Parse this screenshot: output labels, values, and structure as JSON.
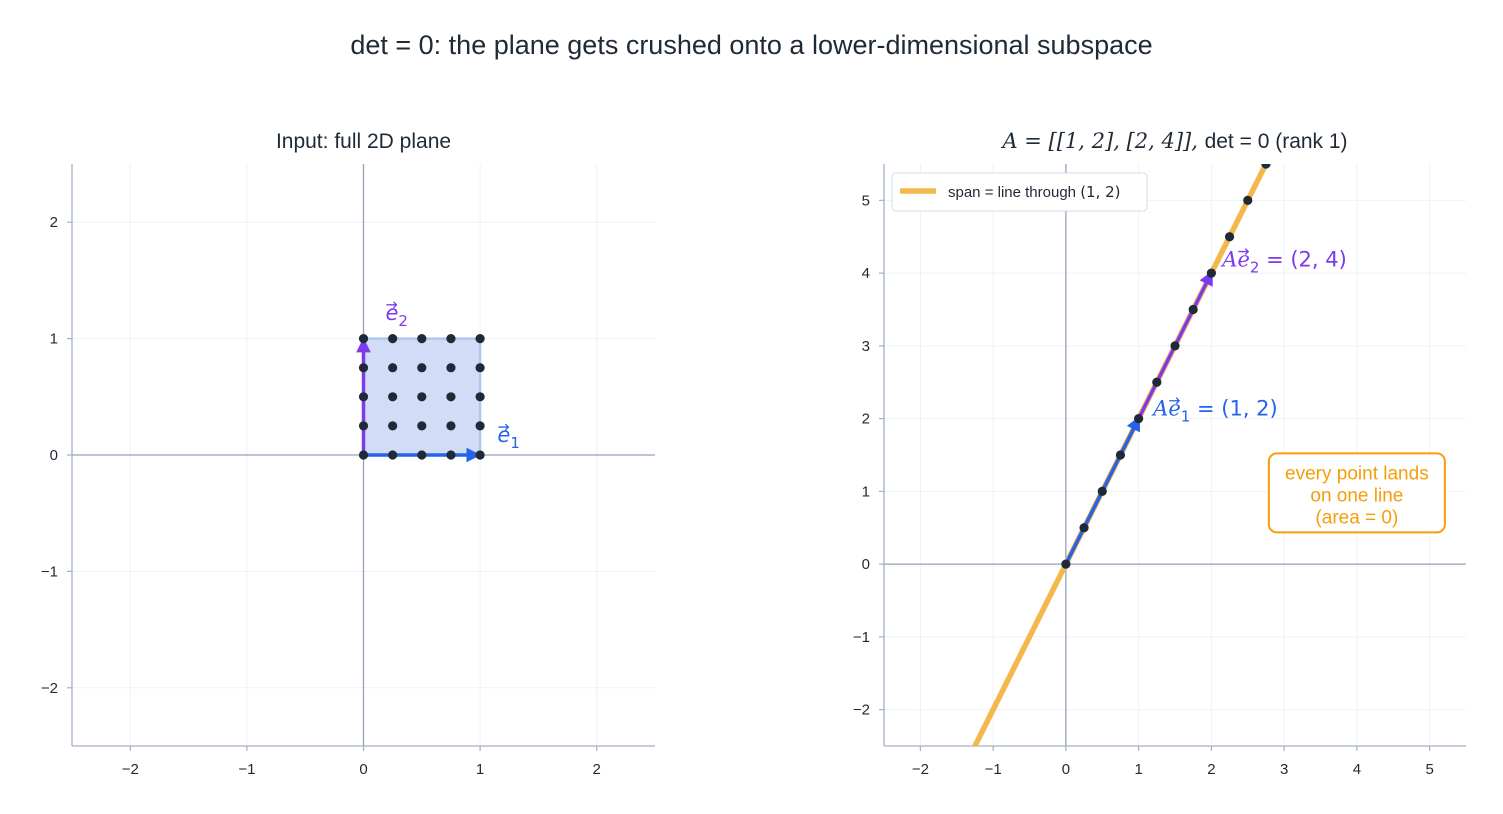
{
  "figure": {
    "title": "det = 0: the plane gets crushed onto a lower-dimensional subspace"
  },
  "colors": {
    "blue": "#2563eb",
    "purple": "#7c3aed",
    "orange": "#f59e0b",
    "line": "#f2b84b",
    "dot": "#1f2937",
    "square_fill": "#cfdcf7",
    "axis": "#94a3b8",
    "grid": "#eef2f7",
    "spine": "#a3b1c6"
  },
  "chart_data": [
    {
      "type": "scatter",
      "title": "Input: full 2D plane",
      "xlim": [
        -2.5,
        2.5
      ],
      "ylim": [
        -2.5,
        2.5
      ],
      "xticks": [
        -2,
        -1,
        0,
        1,
        2
      ],
      "yticks": [
        -2,
        -1,
        0,
        1,
        2
      ],
      "xtick_labels": [
        "−2",
        "−1",
        "0",
        "1",
        "2"
      ],
      "ytick_labels": [
        "−2",
        "−1",
        "0",
        "1",
        "2"
      ],
      "grid": true,
      "unit_square": [
        [
          0,
          0
        ],
        [
          1,
          0
        ],
        [
          1,
          1
        ],
        [
          0,
          1
        ]
      ],
      "grid_points": {
        "x": [
          0,
          0.25,
          0.5,
          0.75,
          1
        ],
        "y": [
          0,
          0.25,
          0.5,
          0.75,
          1
        ]
      },
      "vectors": [
        {
          "id": "e1",
          "from": [
            0,
            0
          ],
          "to": [
            1,
            0
          ],
          "color": "blue",
          "label_base": "e",
          "label_sub": "1",
          "label_at": [
            1.2,
            0.18
          ]
        },
        {
          "id": "e2",
          "from": [
            0,
            0
          ],
          "to": [
            0,
            1
          ],
          "color": "purple",
          "label_base": "e",
          "label_sub": "2",
          "label_at": [
            0.24,
            1.23
          ]
        }
      ]
    },
    {
      "type": "line",
      "title_math": "A = [[1, 2], [2, 4]],",
      "title_text": "det = 0 (rank 1)",
      "xlim": [
        -2.5,
        5.5
      ],
      "ylim": [
        -2.5,
        5.5
      ],
      "xticks": [
        -2,
        -1,
        0,
        1,
        2,
        3,
        4,
        5
      ],
      "yticks": [
        -2,
        -1,
        0,
        1,
        2,
        3,
        4,
        5
      ],
      "xtick_labels": [
        "−2",
        "−1",
        "0",
        "1",
        "2",
        "3",
        "4",
        "5"
      ],
      "ytick_labels": [
        "−2",
        "−1",
        "0",
        "1",
        "2",
        "3",
        "4",
        "5"
      ],
      "grid": true,
      "span_line": {
        "direction": [
          1,
          2
        ],
        "x_range": [
          -1.5,
          3.0
        ]
      },
      "legend": {
        "position": "top-left",
        "label_text": "span = line through ",
        "label_math": "(1, 2)"
      },
      "mapped_points": {
        "x": [
          0,
          0.25,
          0.5,
          0.75,
          1,
          1.25,
          1.5,
          1.75,
          2,
          2.25,
          2.5,
          2.75,
          3
        ],
        "y": [
          0,
          0.5,
          1,
          1.5,
          2,
          2.5,
          3,
          3.5,
          4,
          4.5,
          5,
          5.5,
          6
        ]
      },
      "vectors": [
        {
          "id": "Ae2",
          "from": [
            0,
            0
          ],
          "to": [
            2,
            4
          ],
          "color": "purple",
          "label_prefix": "Ae",
          "label_sub": "2",
          "label_suffix": " = (2, 4)",
          "label_at": [
            2.15,
            4.2
          ]
        },
        {
          "id": "Ae1",
          "from": [
            0,
            0
          ],
          "to": [
            1,
            2
          ],
          "color": "blue",
          "label_prefix": "Ae",
          "label_sub": "1",
          "label_suffix": " = (1, 2)",
          "label_at": [
            1.2,
            2.15
          ]
        }
      ],
      "note": {
        "lines": [
          "every point lands",
          "on one line",
          "(area = 0)"
        ],
        "center": [
          4.0,
          1.0
        ]
      }
    }
  ]
}
